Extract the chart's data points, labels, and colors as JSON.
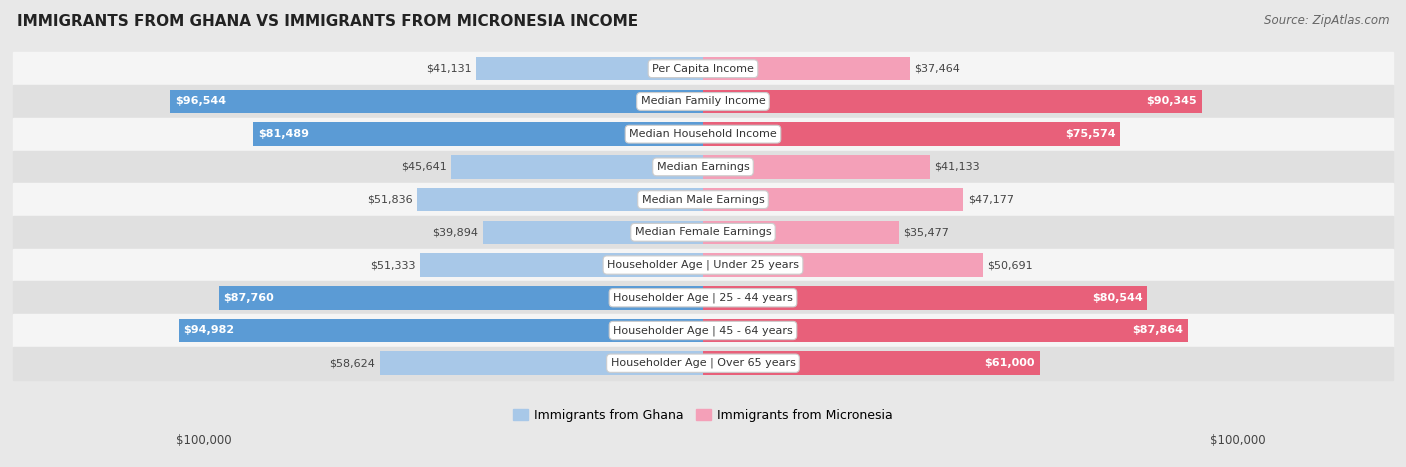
{
  "title": "IMMIGRANTS FROM GHANA VS IMMIGRANTS FROM MICRONESIA INCOME",
  "source": "Source: ZipAtlas.com",
  "categories": [
    "Per Capita Income",
    "Median Family Income",
    "Median Household Income",
    "Median Earnings",
    "Median Male Earnings",
    "Median Female Earnings",
    "Householder Age | Under 25 years",
    "Householder Age | 25 - 44 years",
    "Householder Age | 45 - 64 years",
    "Householder Age | Over 65 years"
  ],
  "ghana_values": [
    41131,
    96544,
    81489,
    45641,
    51836,
    39894,
    51333,
    87760,
    94982,
    58624
  ],
  "micronesia_values": [
    37464,
    90345,
    75574,
    41133,
    47177,
    35477,
    50691,
    80544,
    87864,
    61000
  ],
  "ghana_labels": [
    "$41,131",
    "$96,544",
    "$81,489",
    "$45,641",
    "$51,836",
    "$39,894",
    "$51,333",
    "$87,760",
    "$94,982",
    "$58,624"
  ],
  "micronesia_labels": [
    "$37,464",
    "$90,345",
    "$75,574",
    "$41,133",
    "$47,177",
    "$35,477",
    "$50,691",
    "$80,544",
    "$87,864",
    "$61,000"
  ],
  "max_value": 100000,
  "ghana_color_light": "#a8c8e8",
  "ghana_color_dark": "#5b9bd5",
  "micronesia_color_light": "#f4a0b8",
  "micronesia_color_dark": "#e8607a",
  "ghana_dark_threshold": 60000,
  "micronesia_dark_threshold": 60000,
  "background_color": "#e8e8e8",
  "row_bg_even": "#f5f5f5",
  "row_bg_odd": "#e0e0e0",
  "xlabel_left": "$100,000",
  "xlabel_right": "$100,000",
  "legend_ghana": "Immigrants from Ghana",
  "legend_micronesia": "Immigrants from Micronesia"
}
